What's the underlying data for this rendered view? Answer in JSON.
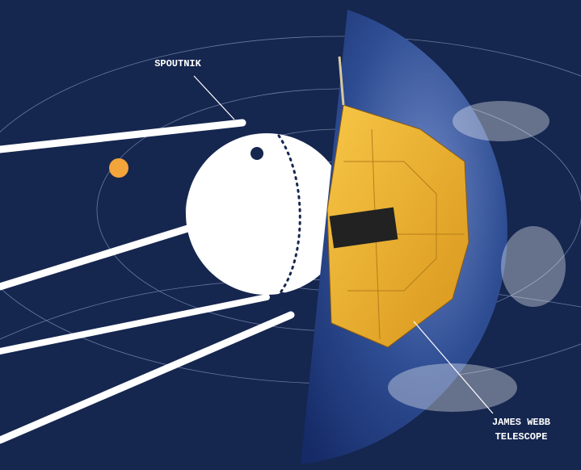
{
  "labels": {
    "sputnik": "SPOUTNIK",
    "jwst": [
      "JAMES WEBB",
      "TELESCOPE"
    ]
  }
}
